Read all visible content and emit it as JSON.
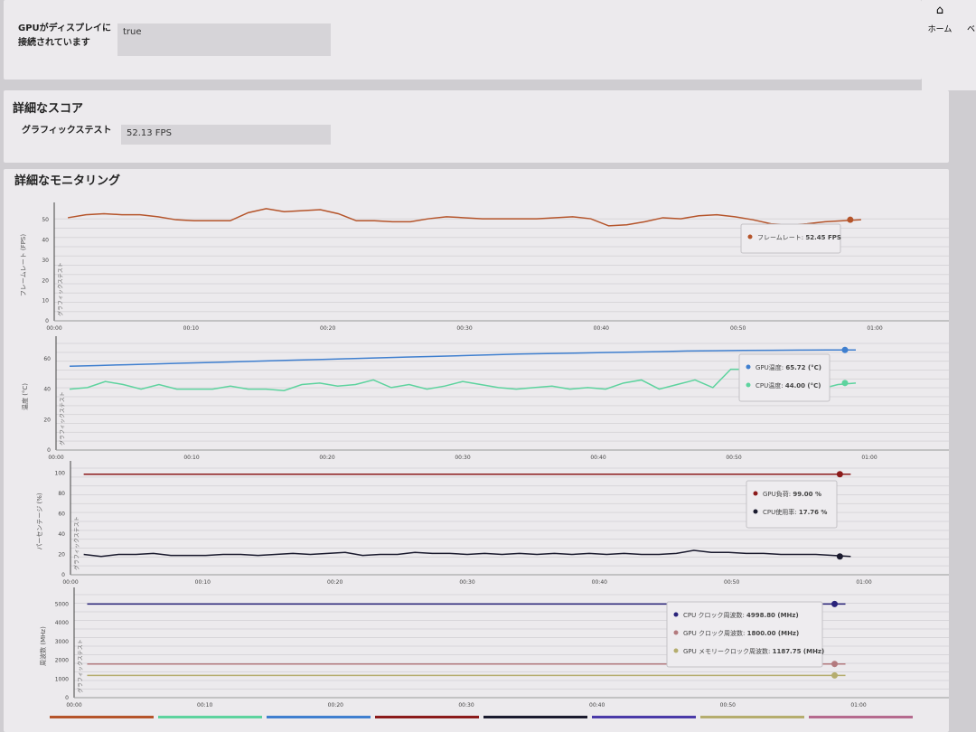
{
  "gpu_connected": {
    "label_line1": "GPUがディスプレイに",
    "label_line2": "接続されています",
    "value": "true"
  },
  "nav": {
    "home_label": "ホーム",
    "next_label": "ベ",
    "home_icon": "home-icon"
  },
  "scores": {
    "title": "詳細なスコア",
    "graphics_test_label": "グラフィックステスト",
    "graphics_test_value": "52.13 FPS"
  },
  "monitoring": {
    "title": "詳細なモニタリング",
    "test_marker": "グラフィックステスト"
  },
  "chart_data": [
    {
      "type": "line",
      "ylabel": "フレームレート (FPS)",
      "ylim": [
        0,
        55
      ],
      "yticks": [
        0,
        10,
        20,
        30,
        40,
        50
      ],
      "xticks": [
        "00:00",
        "00:10",
        "00:20",
        "00:30",
        "00:40",
        "00:50",
        "01:00"
      ],
      "series": [
        {
          "name": "フレームレート",
          "color": "#b5542a",
          "unit": "FPS",
          "tooltip_value": "52.45",
          "values": [
            51,
            52.5,
            53,
            52.5,
            52.5,
            51.5,
            50,
            49.5,
            49.5,
            49.5,
            53.5,
            55.5,
            54,
            54.5,
            55,
            53,
            49.5,
            49.5,
            49,
            49,
            50.5,
            51.5,
            51,
            50.5,
            50.5,
            50.5,
            50.5,
            51,
            51.5,
            50.5,
            47,
            47.5,
            49,
            51,
            50.5,
            52,
            52.5,
            51.5,
            50,
            48,
            47.5,
            48,
            49,
            49.5,
            50
          ]
        }
      ]
    },
    {
      "type": "line",
      "ylabel": "温度 (°C)",
      "ylim": [
        0,
        70
      ],
      "yticks": [
        0,
        20,
        40,
        60
      ],
      "xticks": [
        "00:00",
        "00:10",
        "00:20",
        "00:30",
        "00:40",
        "00:50",
        "01:00"
      ],
      "series": [
        {
          "name": "GPU温度",
          "color": "#3f7fcf",
          "unit": "(°C)",
          "tooltip_value": "65.72",
          "values": [
            55,
            55.5,
            56,
            56.5,
            57,
            57.5,
            58,
            58.5,
            59,
            59.5,
            60,
            60.5,
            61,
            61.5,
            62,
            62.5,
            63,
            63.3,
            63.6,
            64,
            64.3,
            64.6,
            65,
            65.2,
            65.4,
            65.5,
            65.6,
            65.7,
            65.72
          ]
        },
        {
          "name": "CPU温度",
          "color": "#5dd39e",
          "unit": "(°C)",
          "tooltip_value": "44.00",
          "values": [
            40,
            41,
            45,
            43,
            40,
            43,
            40,
            40,
            40,
            42,
            40,
            40,
            39,
            43,
            44,
            42,
            43,
            46,
            41,
            43,
            40,
            42,
            45,
            43,
            41,
            40,
            41,
            42,
            40,
            41,
            40,
            44,
            46,
            40,
            43,
            46,
            41,
            53,
            53,
            47,
            40,
            44,
            40,
            43,
            44
          ]
        }
      ]
    },
    {
      "type": "line",
      "ylabel": "パーセンテージ (%)",
      "ylim": [
        0,
        105
      ],
      "yticks": [
        0,
        20,
        40,
        60,
        80,
        100
      ],
      "xticks": [
        "00:00",
        "00:10",
        "00:20",
        "00:30",
        "00:40",
        "00:50",
        "01:00"
      ],
      "series": [
        {
          "name": "GPU負荷",
          "color": "#8b1a1a",
          "unit": "%",
          "tooltip_value": "99.00",
          "values": [
            99,
            99,
            99,
            99,
            99,
            99,
            99,
            99,
            99,
            99
          ]
        },
        {
          "name": "CPU使用率",
          "color": "#1a1a2e",
          "unit": "%",
          "tooltip_value": "17.76",
          "values": [
            20,
            18,
            20,
            20,
            21,
            19,
            19,
            19,
            20,
            20,
            19,
            20,
            21,
            20,
            21,
            22,
            19,
            20,
            20,
            22,
            21,
            21,
            20,
            21,
            20,
            21,
            20,
            21,
            20,
            21,
            20,
            21,
            20,
            20,
            21,
            24,
            22,
            22,
            21,
            21,
            20,
            20,
            20,
            19,
            18
          ]
        }
      ]
    },
    {
      "type": "line",
      "ylabel": "周波数 (MHz)",
      "ylim": [
        0,
        5500
      ],
      "yticks": [
        0,
        1000,
        2000,
        3000,
        4000,
        5000
      ],
      "xticks": [
        "00:00",
        "00:10",
        "00:20",
        "00:30",
        "00:40",
        "00:50",
        "01:00"
      ],
      "series": [
        {
          "name": "CPU クロック周波数",
          "color": "#2a237a",
          "unit": "(MHz)",
          "tooltip_value": "4998.80",
          "values": [
            4998.8,
            4998.8,
            4998.8
          ]
        },
        {
          "name": "GPU クロック周波数",
          "color": "#b37a7e",
          "unit": "(MHz)",
          "tooltip_value": "1800.00",
          "values": [
            1800,
            1800,
            1800
          ]
        },
        {
          "name": "GPU メモリークロック周波数",
          "color": "#b5ad6e",
          "unit": "(MHz)",
          "tooltip_value": "1187.75",
          "values": [
            1187.75,
            1187.75,
            1187.75
          ]
        }
      ]
    }
  ],
  "legend_colors": [
    "#b5542a",
    "#5dd39e",
    "#3f7fcf",
    "#8b1a1a",
    "#1a1a2e",
    "#4a3aa8",
    "#b5ad6e",
    "#b56a8e"
  ]
}
